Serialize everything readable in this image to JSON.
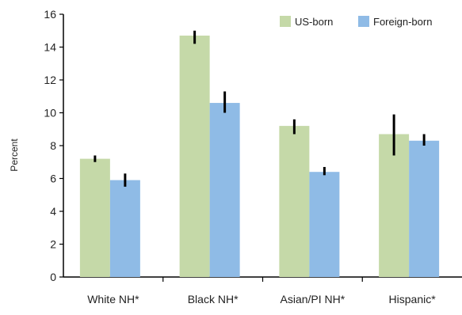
{
  "chart_data": {
    "type": "bar",
    "title": "",
    "xlabel": "",
    "ylabel": "Percent",
    "ylim": [
      0,
      16
    ],
    "yticks": [
      0,
      2,
      4,
      6,
      8,
      10,
      12,
      14,
      16
    ],
    "categories": [
      "White NH*",
      "Black NH*",
      "Asian/PI NH*",
      "Hispanic*"
    ],
    "series": [
      {
        "name": "US-born",
        "color": "#c5d9a8",
        "values": [
          7.2,
          14.7,
          9.2,
          8.7
        ],
        "error_low": [
          7.0,
          14.2,
          8.7,
          7.4
        ],
        "error_high": [
          7.4,
          15.0,
          9.6,
          9.9
        ]
      },
      {
        "name": "Foreign-born",
        "color": "#8fbbe6",
        "values": [
          5.9,
          10.6,
          6.4,
          8.3
        ],
        "error_low": [
          5.5,
          10.0,
          6.2,
          8.0
        ],
        "error_high": [
          6.3,
          11.3,
          6.7,
          8.7
        ]
      }
    ],
    "legend_position": "top-right",
    "grid": false
  }
}
